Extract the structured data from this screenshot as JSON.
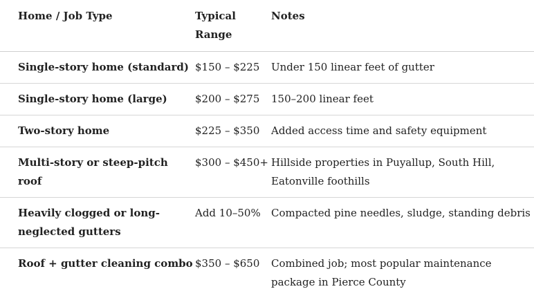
{
  "table": {
    "headers": [
      "Home / Job Type",
      "Typical Range",
      "Notes"
    ],
    "rows": [
      {
        "type": "Single-story home (standard)",
        "range": "$150 – $225",
        "notes": "Under 150 linear feet of gutter"
      },
      {
        "type": "Single-story home (large)",
        "range": "$200 – $275",
        "notes": "150–200 linear feet"
      },
      {
        "type": "Two-story home",
        "range": "$225 – $350",
        "notes": "Added access time and safety equipment"
      },
      {
        "type": "Multi-story or steep-pitch roof",
        "range": "$300 – $450+",
        "notes": "Hillside properties in Puyallup, South Hill, Eatonville foothills"
      },
      {
        "type": "Heavily clogged or long-neglected gutters",
        "range": "Add 10–50%",
        "notes": "Compacted pine needles, sludge, standing debris"
      },
      {
        "type": "Roof + gutter cleaning combo",
        "range": "$350 – $650",
        "notes": "Combined job; most popular maintenance package in Pierce County"
      }
    ]
  }
}
